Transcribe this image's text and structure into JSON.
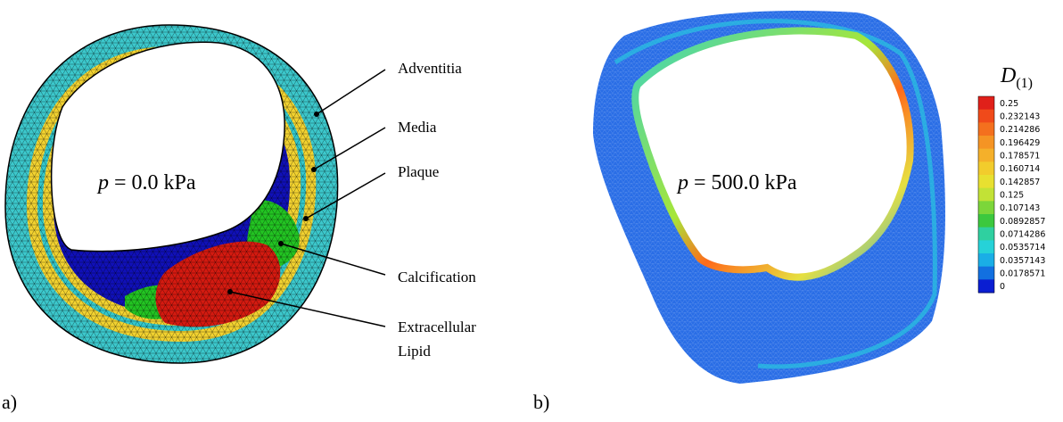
{
  "panel_a": {
    "tag": "a)",
    "pressure": {
      "variable": "p",
      "rest": "= 0.0 kPa"
    },
    "labels": {
      "adventitia": "Adventitia",
      "media": "Media",
      "plaque": "Plaque",
      "calcification": "Calcification",
      "lipid_line1": "Extracellular",
      "lipid_line2": "Lipid"
    }
  },
  "panel_b": {
    "tag": "b)",
    "pressure": {
      "variable": "p",
      "rest": "= 500.0 kPa"
    },
    "colorbar": {
      "symbol": "D",
      "subscript": "(1)",
      "ticks": [
        "0.25",
        "0.232143",
        "0.214286",
        "0.196429",
        "0.178571",
        "0.160714",
        "0.142857",
        "0.125",
        "0.107143",
        "0.0892857",
        "0.0714286",
        "0.0535714",
        "0.0357143",
        "0.0178571",
        "0"
      ]
    }
  }
}
